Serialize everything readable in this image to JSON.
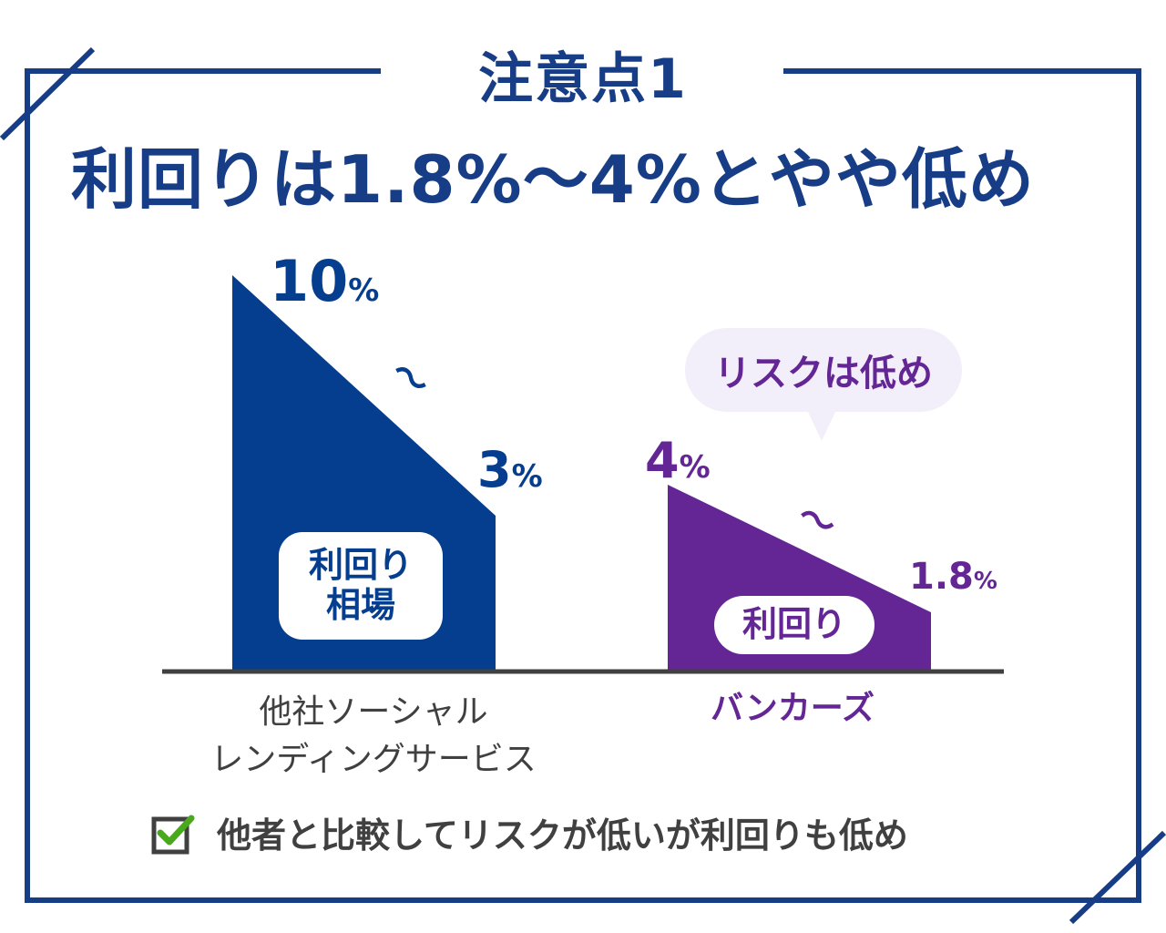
{
  "header": {
    "caution_label": "注意点1",
    "title": "利回りは1.8%～4%とやや低め"
  },
  "chart_data": {
    "type": "area",
    "unit": "%",
    "series": [
      {
        "category": "他社ソーシャル\nレンディングサービス",
        "high": 10,
        "low": 3,
        "high_label": "10",
        "low_label": "3",
        "range_symbol": "～",
        "inner_label_lines": [
          "利回り",
          "相場"
        ],
        "color": "#053e8e"
      },
      {
        "category": "バンカーズ",
        "high": 4,
        "low": 1.8,
        "high_label": "4",
        "low_label": "1.8",
        "range_symbol": "～",
        "inner_label_lines": [
          "利回り"
        ],
        "color": "#632694"
      }
    ]
  },
  "labels": {
    "unit": "%",
    "competitor_high": "10",
    "competitor_low": "3",
    "competitor_tilde": "～",
    "competitor_pill_line1": "利回り",
    "competitor_pill_line2": "相場",
    "competitor_category_line1": "他社ソーシャル",
    "competitor_category_line2": "レンディングサービス",
    "bankers_high": "4",
    "bankers_low": "1.8",
    "bankers_tilde": "～",
    "bankers_pill": "利回り",
    "bankers_category": "バンカーズ",
    "callout": "リスクは低め"
  },
  "footer": {
    "text": "他者と比較してリスクが低いが利回りも低め"
  },
  "colors": {
    "frame": "#173d86",
    "navy": "#053e8e",
    "purple": "#632694",
    "callout_bg": "#f3effa",
    "baseline": "#404040",
    "check": "#4aa81e",
    "text_gray": "#404040"
  },
  "icons": {
    "checkbox": "checkbox-checked-icon"
  }
}
